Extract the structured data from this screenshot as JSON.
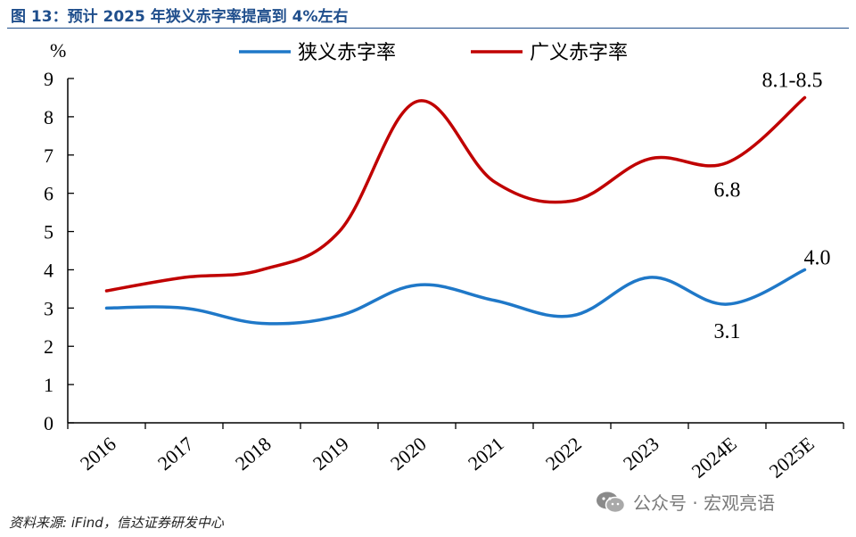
{
  "figure": {
    "title": "图 13：预计 2025 年狭义赤字率提高到 4%左右",
    "source": "资料来源: iFind，信达证券研发中心",
    "watermark": "公众号 · 宏观亮语",
    "watermark_icon": "wechat-icon"
  },
  "chart_data": {
    "type": "line",
    "title": "",
    "xlabel": "",
    "ylabel": "%",
    "ylim": [
      0,
      9
    ],
    "yticks": [
      "0",
      "1",
      "2",
      "3",
      "4",
      "5",
      "6",
      "7",
      "8",
      "9"
    ],
    "categories": [
      "2016",
      "2017",
      "2018",
      "2019",
      "2020",
      "2021",
      "2022",
      "2023",
      "2024E",
      "2025E"
    ],
    "grid": false,
    "legend_position": "top-center",
    "series": [
      {
        "name": "狭义赤字率",
        "color": "#1f78c8",
        "values": [
          3.0,
          3.0,
          2.6,
          2.8,
          3.6,
          3.2,
          2.8,
          3.8,
          3.1,
          4.0
        ]
      },
      {
        "name": "广义赤字率",
        "color": "#c00000",
        "values": [
          3.45,
          3.8,
          4.0,
          5.0,
          8.4,
          6.3,
          5.8,
          6.9,
          6.8,
          8.5
        ]
      }
    ],
    "annotations": [
      {
        "text": "8.1-8.5",
        "series": 1,
        "index": 9,
        "placement": "above-left"
      },
      {
        "text": "6.8",
        "series": 1,
        "index": 8,
        "placement": "below"
      },
      {
        "text": "4.0",
        "series": 0,
        "index": 9,
        "placement": "above-right"
      },
      {
        "text": "3.1",
        "series": 0,
        "index": 8,
        "placement": "below"
      }
    ]
  }
}
